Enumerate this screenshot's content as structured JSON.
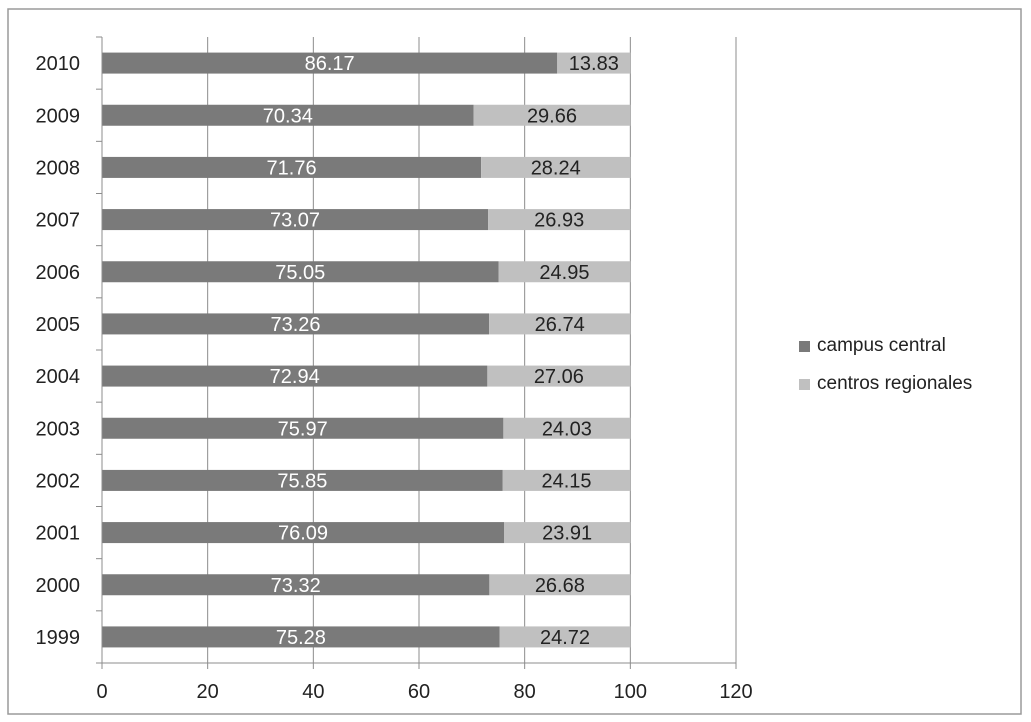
{
  "chart_data": {
    "type": "bar",
    "orientation": "horizontal",
    "stacked": true,
    "title": "",
    "xlabel": "",
    "ylabel": "",
    "categories": [
      "1999",
      "2000",
      "2001",
      "2002",
      "2003",
      "2004",
      "2005",
      "2006",
      "2007",
      "2008",
      "2009",
      "2010"
    ],
    "series": [
      {
        "name": "campus central",
        "values": [
          75.28,
          73.32,
          76.09,
          75.85,
          75.97,
          72.94,
          73.26,
          75.05,
          73.07,
          71.76,
          70.34,
          86.17
        ],
        "color": "#7a7a7a",
        "label_color": "#ffffff"
      },
      {
        "name": "centros regionales",
        "values": [
          24.72,
          26.68,
          23.91,
          24.15,
          24.03,
          27.06,
          26.74,
          24.95,
          26.93,
          28.24,
          29.66,
          13.83
        ],
        "color": "#c0c0c0",
        "label_color": "#222222"
      }
    ],
    "data_labels": {
      "campus central": [
        "75.28",
        "73.32",
        "76.09",
        "75.85",
        "75.97",
        "72.94",
        "73.26",
        "75.05",
        "73.07",
        "71.76",
        "70.34",
        "86.17"
      ],
      "centros regionales": [
        "24.72",
        "26.68",
        "23.91",
        "24.15",
        "24.03",
        "27.06",
        "26.74",
        "24.95",
        "26.93",
        "28.24",
        "29.66",
        "13.83"
      ]
    },
    "xlim": [
      0,
      120
    ],
    "x_ticks": [
      0,
      20,
      40,
      60,
      80,
      100,
      120
    ],
    "x_tick_labels": [
      "0",
      "20",
      "40",
      "60",
      "80",
      "100",
      "120"
    ],
    "grid": "vertical",
    "legend_position": "right"
  }
}
